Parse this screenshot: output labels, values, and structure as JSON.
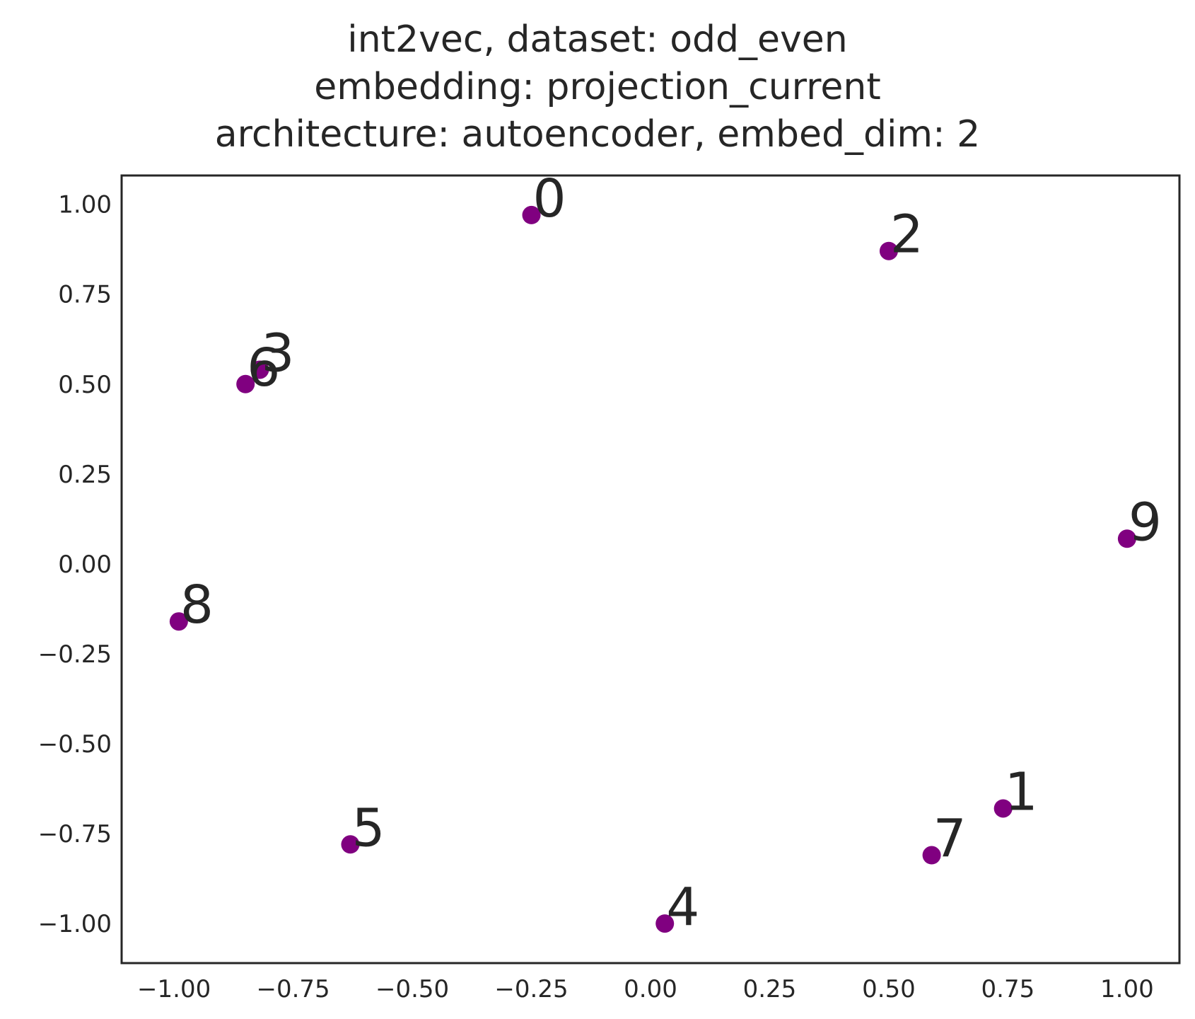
{
  "chart_data": {
    "type": "scatter",
    "title_lines": [
      "int2vec, dataset: odd_even",
      "embedding: projection_current",
      "architecture: autoencoder, embed_dim: 2"
    ],
    "xlabel": "",
    "ylabel": "",
    "xlim": [
      -1.11,
      1.11
    ],
    "ylim": [
      -1.11,
      1.08
    ],
    "xticks": [
      -1.0,
      -0.75,
      -0.5,
      -0.25,
      0.0,
      0.25,
      0.5,
      0.75,
      1.0
    ],
    "xtick_labels": [
      "−1.00",
      "−0.75",
      "−0.50",
      "−0.25",
      "0.00",
      "0.25",
      "0.50",
      "0.75",
      "1.00"
    ],
    "yticks": [
      1.0,
      0.75,
      0.5,
      0.25,
      0.0,
      -0.25,
      -0.5,
      -0.75,
      -1.0
    ],
    "ytick_labels": [
      "1.00",
      "0.75",
      "0.50",
      "0.25",
      "0.00",
      "−0.25",
      "−0.50",
      "−0.75",
      "−1.00"
    ],
    "grid": false,
    "marker_color": "#800080",
    "points": [
      {
        "label": "0",
        "x": -0.25,
        "y": 0.97
      },
      {
        "label": "1",
        "x": 0.74,
        "y": -0.68
      },
      {
        "label": "2",
        "x": 0.5,
        "y": 0.87
      },
      {
        "label": "3",
        "x": -0.82,
        "y": 0.54
      },
      {
        "label": "4",
        "x": 0.03,
        "y": -1.0
      },
      {
        "label": "5",
        "x": -0.63,
        "y": -0.78
      },
      {
        "label": "6",
        "x": -0.85,
        "y": 0.5
      },
      {
        "label": "7",
        "x": 0.59,
        "y": -0.81
      },
      {
        "label": "8",
        "x": -0.99,
        "y": -0.16
      },
      {
        "label": "9",
        "x": 1.0,
        "y": 0.07
      }
    ]
  }
}
